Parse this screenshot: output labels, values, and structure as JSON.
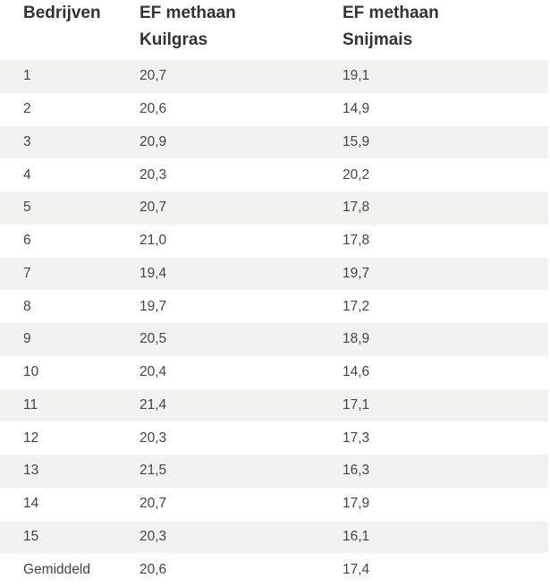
{
  "table": {
    "headers": [
      {
        "line1": "Bedrijven",
        "line2": ""
      },
      {
        "line1": "EF methaan",
        "line2": "Kuilgras"
      },
      {
        "line1": "EF methaan",
        "line2": "Snijmais"
      }
    ],
    "rows": [
      {
        "bedrijf": "1",
        "kuilgras": "20,7",
        "snijmais": "19,1"
      },
      {
        "bedrijf": "2",
        "kuilgras": "20,6",
        "snijmais": "14,9"
      },
      {
        "bedrijf": "3",
        "kuilgras": "20,9",
        "snijmais": "15,9"
      },
      {
        "bedrijf": "4",
        "kuilgras": "20,3",
        "snijmais": "20,2"
      },
      {
        "bedrijf": "5",
        "kuilgras": "20,7",
        "snijmais": "17,8"
      },
      {
        "bedrijf": "6",
        "kuilgras": "21,0",
        "snijmais": "17,8"
      },
      {
        "bedrijf": "7",
        "kuilgras": "19,4",
        "snijmais": "19,7"
      },
      {
        "bedrijf": "8",
        "kuilgras": "19,7",
        "snijmais": "17,2"
      },
      {
        "bedrijf": "9",
        "kuilgras": "20,5",
        "snijmais": "18,9"
      },
      {
        "bedrijf": "10",
        "kuilgras": "20,4",
        "snijmais": "14,6"
      },
      {
        "bedrijf": "11",
        "kuilgras": "21,4",
        "snijmais": "17,1"
      },
      {
        "bedrijf": "12",
        "kuilgras": "20,3",
        "snijmais": "17,3"
      },
      {
        "bedrijf": "13",
        "kuilgras": "21,5",
        "snijmais": "16,3"
      },
      {
        "bedrijf": "14",
        "kuilgras": "20,7",
        "snijmais": "17,9"
      },
      {
        "bedrijf": "15",
        "kuilgras": "20,3",
        "snijmais": "16,1"
      },
      {
        "bedrijf": "Gemiddeld",
        "kuilgras": "20,6",
        "snijmais": "17,4"
      }
    ]
  }
}
